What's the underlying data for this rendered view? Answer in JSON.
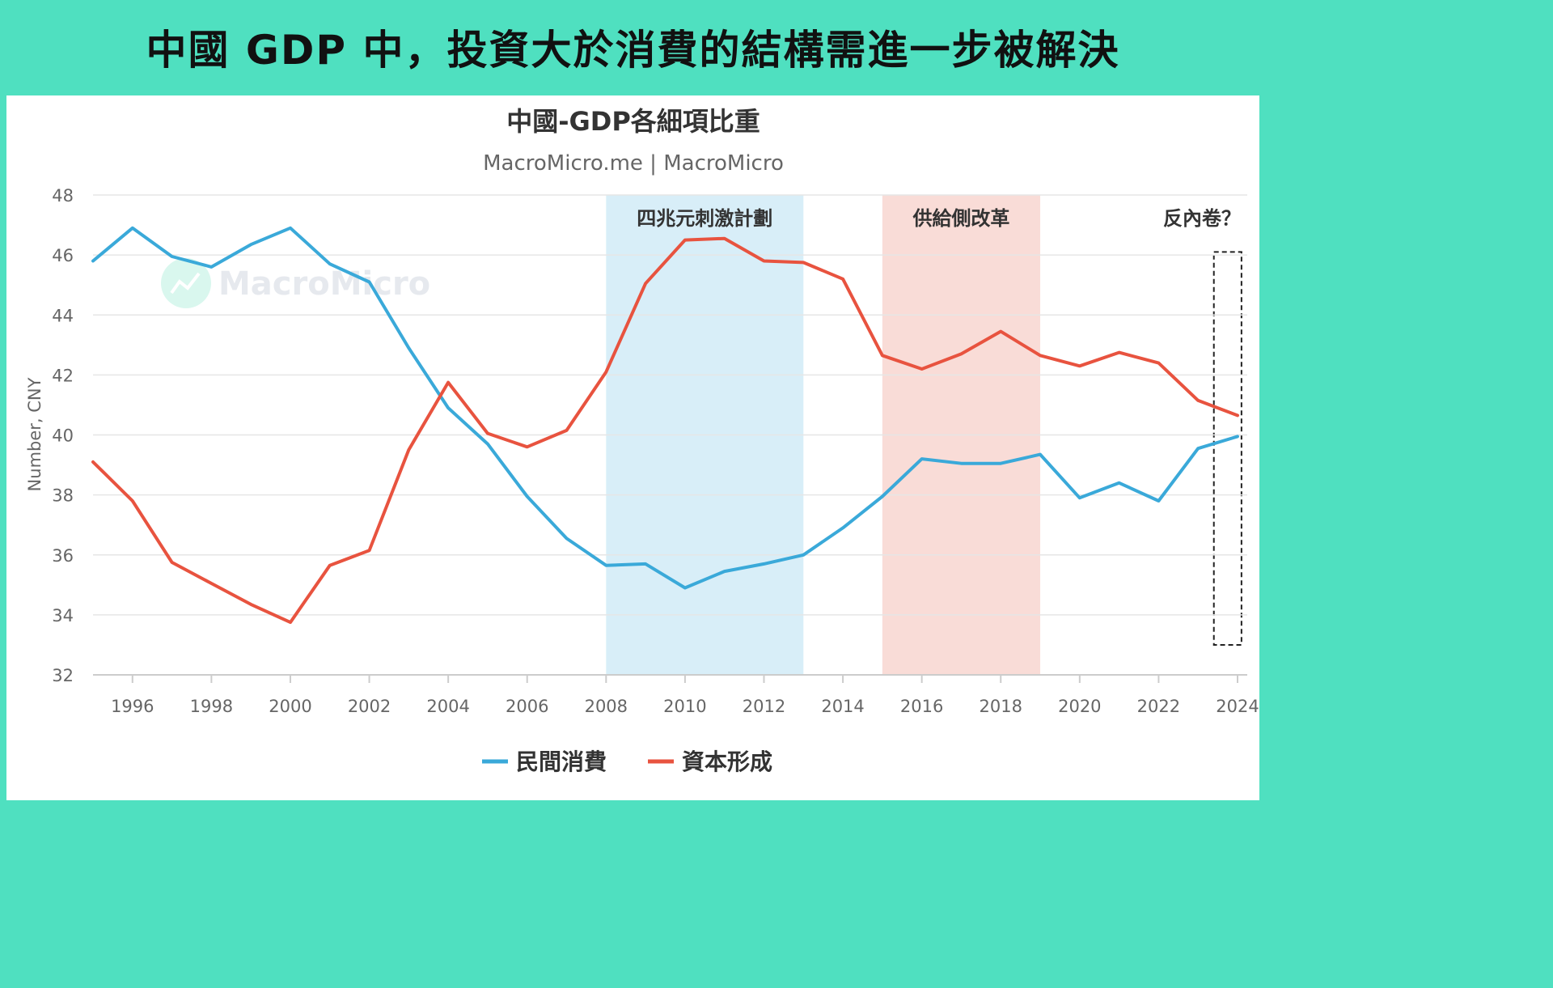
{
  "banner": {
    "title": "中國 GDP 中，投資大於消費的結構需進一步被解決"
  },
  "chart_data": {
    "type": "line",
    "title": "中國-GDP各細項比重",
    "subtitle": "MacroMicro.me | MacroMicro",
    "watermark": "MacroMicro",
    "ylabel": "Number, CNY",
    "xlabel": "",
    "ylim": [
      32,
      48
    ],
    "xlim": [
      1995,
      2024
    ],
    "yticks": [
      32,
      34,
      36,
      38,
      40,
      42,
      44,
      46,
      48
    ],
    "xticks": [
      1996,
      1998,
      2000,
      2002,
      2004,
      2006,
      2008,
      2010,
      2012,
      2014,
      2016,
      2018,
      2020,
      2022,
      2024
    ],
    "grid": true,
    "legend_position": "bottom",
    "x": [
      1995,
      1996,
      1997,
      1998,
      1999,
      2000,
      2001,
      2002,
      2003,
      2004,
      2005,
      2006,
      2007,
      2008,
      2009,
      2010,
      2011,
      2012,
      2013,
      2014,
      2015,
      2016,
      2017,
      2018,
      2019,
      2020,
      2021,
      2022,
      2023,
      2024
    ],
    "series": [
      {
        "name": "民間消費",
        "color": "#3aa9d9",
        "values": [
          45.8,
          46.9,
          45.95,
          45.6,
          46.35,
          46.9,
          45.7,
          45.1,
          42.9,
          40.9,
          39.7,
          37.95,
          36.55,
          35.65,
          35.7,
          34.9,
          35.45,
          35.7,
          36.0,
          36.9,
          37.95,
          39.2,
          39.05,
          39.05,
          39.35,
          37.9,
          38.4,
          37.8,
          39.55,
          39.95
        ]
      },
      {
        "name": "資本形成",
        "color": "#e8533f",
        "values": [
          39.1,
          37.8,
          35.75,
          35.05,
          34.35,
          33.75,
          35.65,
          36.15,
          39.5,
          41.75,
          40.05,
          39.6,
          40.15,
          42.1,
          45.05,
          46.5,
          46.55,
          45.8,
          45.75,
          45.2,
          42.65,
          42.2,
          42.7,
          43.45,
          42.65,
          42.3,
          42.75,
          42.4,
          41.15,
          40.65
        ]
      }
    ],
    "annotations": [
      {
        "label": "四兆元刺激計劃",
        "x_start": 2008,
        "x_end": 2013,
        "color": "#d8eef8"
      },
      {
        "label": "供給側改革",
        "x_start": 2015,
        "x_end": 2019,
        "color": "#f9dcd7"
      },
      {
        "label": "反內卷？",
        "x_start": 2023.4,
        "x_end": 2024.1,
        "y_start": 33,
        "y_end": 46.1,
        "style": "dashed-box"
      }
    ]
  }
}
